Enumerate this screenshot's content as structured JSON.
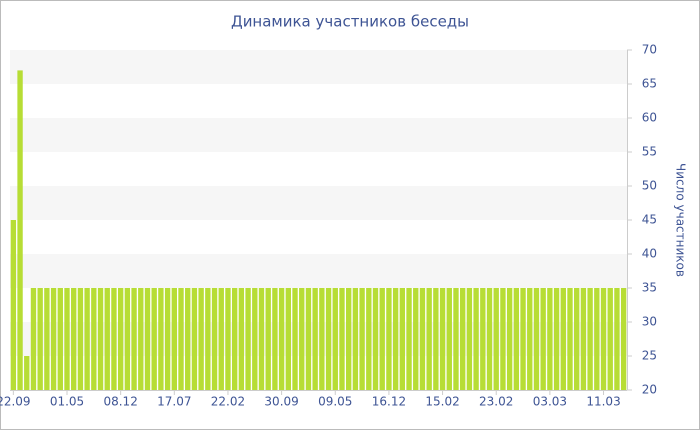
{
  "chart_data": {
    "type": "bar",
    "title": "Динамика участников беседы",
    "y_label": "Число участников",
    "categories": [
      "22.09",
      null,
      null,
      null,
      null,
      null,
      null,
      null,
      "01.05",
      null,
      null,
      null,
      null,
      null,
      null,
      null,
      "08.12",
      null,
      null,
      null,
      null,
      null,
      null,
      null,
      "17.07",
      null,
      null,
      null,
      null,
      null,
      null,
      null,
      "22.02",
      null,
      null,
      null,
      null,
      null,
      null,
      null,
      "30.09",
      null,
      null,
      null,
      null,
      null,
      null,
      null,
      "09.05",
      null,
      null,
      null,
      null,
      null,
      null,
      null,
      "16.12",
      null,
      null,
      null,
      null,
      null,
      null,
      null,
      "15.02",
      null,
      null,
      null,
      null,
      null,
      null,
      null,
      "23.02",
      null,
      null,
      null,
      null,
      null,
      null,
      null,
      "03.03",
      null,
      null,
      null,
      null,
      null,
      null,
      null,
      "11.03",
      null,
      null,
      null
    ],
    "values": [
      45,
      67,
      25,
      35,
      35,
      35,
      35,
      35,
      35,
      35,
      35,
      35,
      35,
      35,
      35,
      35,
      35,
      35,
      35,
      35,
      35,
      35,
      35,
      35,
      35,
      35,
      35,
      35,
      35,
      35,
      35,
      35,
      35,
      35,
      35,
      35,
      35,
      35,
      35,
      35,
      35,
      35,
      35,
      35,
      35,
      35,
      35,
      35,
      35,
      35,
      35,
      35,
      35,
      35,
      35,
      35,
      35,
      35,
      35,
      35,
      35,
      35,
      35,
      35,
      35,
      35,
      35,
      35,
      35,
      35,
      35,
      35,
      35,
      35,
      35,
      35,
      35,
      35,
      35,
      35,
      35,
      35,
      35,
      35,
      35,
      35,
      35,
      35,
      35,
      35,
      35,
      35
    ],
    "color": "#b7dd35",
    "ylim": [
      20,
      70
    ],
    "yticks": [
      20,
      25,
      30,
      35,
      40,
      45,
      50,
      55,
      60,
      65,
      70
    ],
    "grid": true,
    "y_axis_side": "right"
  }
}
